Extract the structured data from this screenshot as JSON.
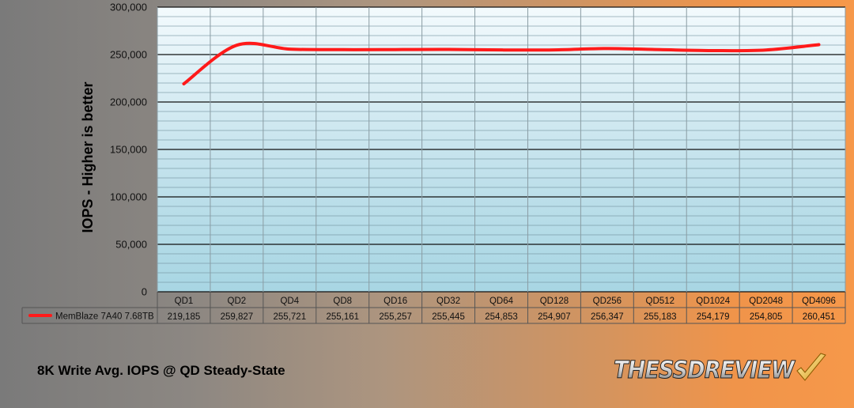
{
  "chart_data": {
    "type": "line",
    "categories": [
      "QD1",
      "QD2",
      "QD4",
      "QD8",
      "QD16",
      "QD32",
      "QD64",
      "QD128",
      "QD256",
      "QD512",
      "QD1024",
      "QD2048",
      "QD4096"
    ],
    "series": [
      {
        "name": "MemBlaze 7A40 7.68TB",
        "values": [
          219185,
          259827,
          255721,
          255161,
          255257,
          255445,
          254853,
          254907,
          256347,
          255183,
          254179,
          254805,
          260451
        ],
        "labels": [
          "219,185",
          "259,827",
          "255,721",
          "255,161",
          "255,257",
          "255,445",
          "254,853",
          "254,907",
          "256,347",
          "255,183",
          "254,179",
          "254,805",
          "260,451"
        ],
        "color": "#ff1a1a"
      }
    ],
    "ylabel": "IOPS - Higher is better",
    "ylim": [
      0,
      300000
    ],
    "yticks": [
      0,
      50000,
      100000,
      150000,
      200000,
      250000,
      300000
    ],
    "ytick_labels": [
      "0",
      "50,000",
      "100,000",
      "150,000",
      "200,000",
      "250,000",
      "300,000"
    ],
    "grid": true,
    "legend": "data-table",
    "caption": "8K Write Avg. IOPS @ QD Steady-State"
  },
  "logo": {
    "text": "THESSDREVIEW"
  }
}
